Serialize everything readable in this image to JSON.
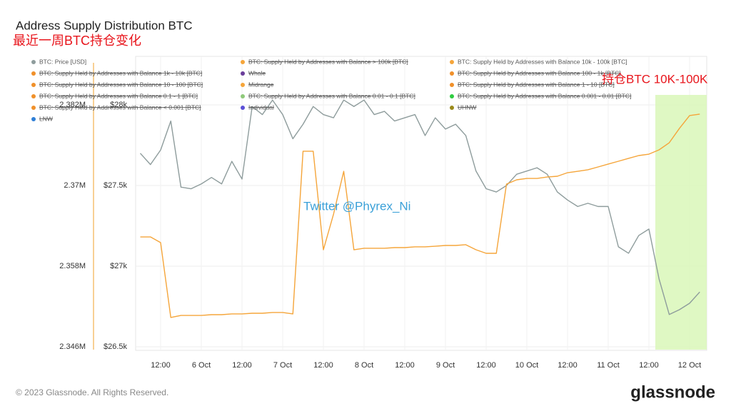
{
  "chart_data": {
    "type": "line",
    "title": "Address Supply Distribution BTC",
    "subtitle": "最近一周BTC持仓变化",
    "annotations": [
      "Twitter @Phyrex_Ni",
      "持仓BTC 10K-100K"
    ],
    "footer": "© 2023 Glassnode. All Rights Reserved.",
    "brand": "glassnode",
    "categories": [
      null,
      null,
      "12:00",
      null,
      null,
      null,
      "6 Oct",
      null,
      null,
      null,
      "12:00",
      null,
      null,
      null,
      "7 Oct",
      null,
      null,
      null,
      "12:00",
      null,
      null,
      null,
      "8 Oct",
      null,
      null,
      null,
      "12:00",
      null,
      null,
      null,
      "9 Oct",
      null,
      null,
      null,
      "12:00",
      null,
      null,
      null,
      "10 Oct",
      null,
      null,
      null,
      "12:00",
      null,
      null,
      null,
      "11 Oct",
      null,
      null,
      null,
      "12:00",
      null,
      null,
      null,
      "12 Oct",
      null
    ],
    "ylim": [
      26500,
      28300
    ],
    "yticks": [
      {
        "value": 26500,
        "label": "$26.5k"
      },
      {
        "value": 27000,
        "label": "$27k"
      },
      {
        "value": 27500,
        "label": "$27.5k"
      },
      {
        "value": 28000,
        "label": "$28k"
      }
    ],
    "y2lim": [
      2346000,
      2389200
    ],
    "y2ticks": [
      {
        "value": 2346000,
        "label": "2.346M"
      },
      {
        "value": 2358000,
        "label": "2.358M"
      },
      {
        "value": 2370000,
        "label": "2.37M"
      },
      {
        "value": 2382000,
        "label": "2.382M"
      }
    ],
    "grid": true,
    "legend": "top-left",
    "series": [
      {
        "name": "BTC: Price [USD]",
        "color": "#8e9c9c",
        "axis": "y",
        "values": [
          27700,
          27630,
          27720,
          27900,
          27490,
          27480,
          27510,
          27550,
          27510,
          27650,
          27540,
          27990,
          27940,
          28030,
          27940,
          27790,
          27880,
          27990,
          27940,
          27920,
          28030,
          27990,
          28030,
          27940,
          27960,
          27900,
          27920,
          27940,
          27810,
          27920,
          27850,
          27880,
          27810,
          27590,
          27480,
          27460,
          27500,
          27570,
          27590,
          27610,
          27570,
          27460,
          27410,
          27370,
          27390,
          27370,
          27370,
          27120,
          27080,
          27190,
          27230,
          26920,
          26700,
          26730,
          26770,
          26840
        ]
      },
      {
        "name": "BTC: Supply Held by Addresses with Balance 10k - 100k [BTC]",
        "color": "#f5a53a",
        "axis": "y2",
        "values": [
          2362350,
          2362350,
          2361500,
          2350360,
          2350670,
          2350670,
          2350670,
          2350780,
          2350780,
          2350890,
          2350890,
          2350990,
          2350990,
          2351100,
          2351100,
          2350890,
          2375100,
          2375100,
          2360440,
          2365750,
          2372120,
          2360440,
          2360660,
          2360660,
          2360660,
          2360760,
          2360760,
          2360870,
          2360870,
          2360970,
          2361080,
          2361080,
          2361190,
          2360440,
          2359910,
          2359910,
          2370210,
          2370850,
          2371060,
          2371060,
          2371270,
          2371380,
          2371910,
          2372120,
          2372340,
          2372760,
          2373190,
          2373610,
          2374040,
          2374460,
          2374670,
          2375310,
          2376370,
          2378500,
          2380410,
          2380620
        ]
      }
    ],
    "legend_items": [
      {
        "name": "BTC: Price [USD]",
        "color": "#8e9c9c",
        "hidden": false
      },
      {
        "name": "BTC: Supply Held by Addresses with Balance > 100k [BTC]",
        "color": "#f5a53a",
        "hidden": true
      },
      {
        "name": "BTC: Supply Held by Addresses with Balance 10k - 100k [BTC]",
        "color": "#f5a53a",
        "hidden": false
      },
      {
        "name": "BTC: Supply Held by Addresses with Balance 1k - 10k [BTC]",
        "color": "#f0902a",
        "hidden": true
      },
      {
        "name": "Whale",
        "color": "#6a3d9a",
        "hidden": true
      },
      {
        "name": "BTC: Supply Held by Addresses with Balance 100 - 1k [BTC]",
        "color": "#f0902a",
        "hidden": true
      },
      {
        "name": "BTC: Supply Held by Addresses with Balance 10 - 100 [BTC]",
        "color": "#f0902a",
        "hidden": true
      },
      {
        "name": "Midrange",
        "color": "#f5a53a",
        "hidden": true
      },
      {
        "name": "BTC: Supply Held by Addresses with Balance 1 - 10 [BTC]",
        "color": "#f0902a",
        "hidden": true
      },
      {
        "name": "BTC: Supply Held by Addresses with Balance 0.1 - 1 [BTC]",
        "color": "#f0902a",
        "hidden": true
      },
      {
        "name": "BTC: Supply Held by Addresses with Balance 0.01 - 0.1 [BTC]",
        "color": "#8fc97a",
        "hidden": true
      },
      {
        "name": "BTC: Supply Held by Addresses with Balance 0.001 - 0.01 [BTC]",
        "color": "#2ecc40",
        "hidden": true
      },
      {
        "name": "BTC: Supply Held by Addresses with Balance < 0.001 [BTC]",
        "color": "#f0902a",
        "hidden": true
      },
      {
        "name": "Individual",
        "color": "#5b4fd6",
        "hidden": true
      },
      {
        "name": "UHNW",
        "color": "#9a8a1a",
        "hidden": true
      },
      {
        "name": "LNW",
        "color": "#2f7fd6",
        "hidden": true
      }
    ]
  }
}
